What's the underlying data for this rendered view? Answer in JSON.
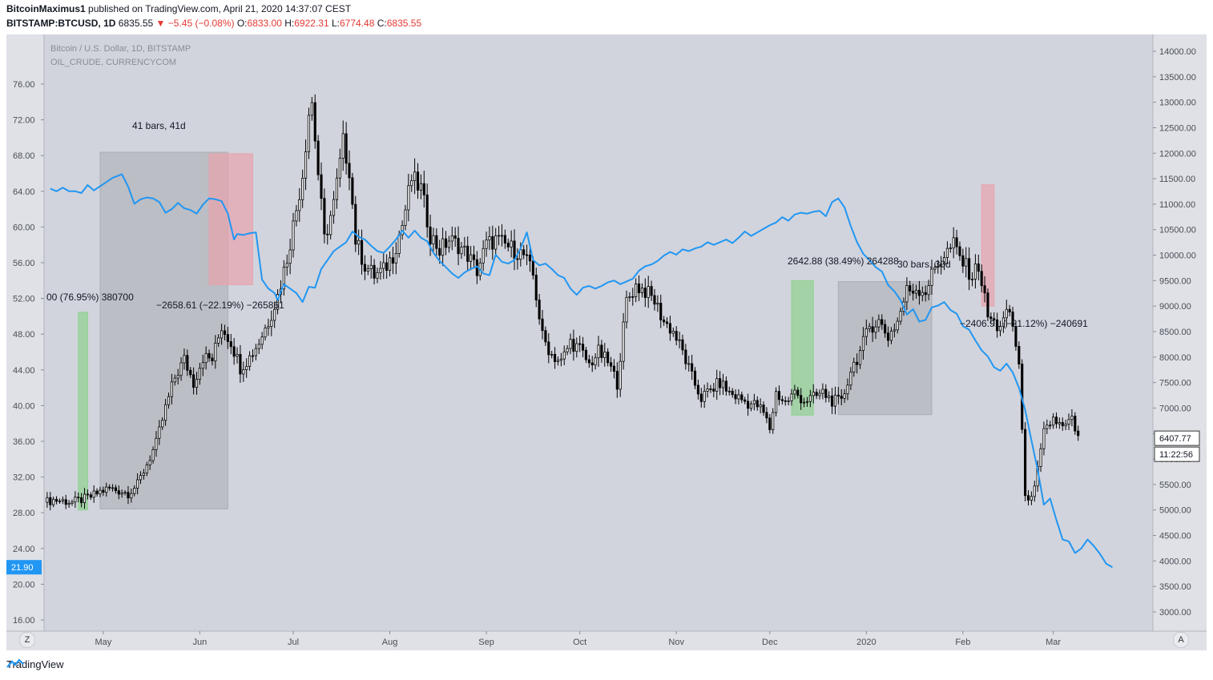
{
  "header": {
    "author": "BitcoinMaximus1",
    "published": "published on TradingView.com, April 21, 2020 14:37:07 CEST",
    "symbol": "BITSTAMP:BTCUSD, 1D",
    "last": "6835.55",
    "change": "−5.45 (−0.08%)",
    "o_label": "O:",
    "o": "6833.00",
    "h_label": "H:",
    "h": "6922.31",
    "l_label": "L:",
    "l": "6774.48",
    "c_label": "C:",
    "c": "6835.55"
  },
  "legend": {
    "main": "Bitcoin / U.S. Dollar, 1D, BITSTAMP",
    "overlay": "OIL_CRUDE, CURRENCYCOM"
  },
  "footer": {
    "brand": "TradingView"
  },
  "corner_left": "Z",
  "corner_right": "A",
  "colors": {
    "bg": "#d1d4dc",
    "frame": "#dfe1e7",
    "oil": "#2196f3",
    "candle": "#000000",
    "green_box": "#8ed18e",
    "red_box": "#e8a3ae",
    "grey_box": "#a9abb0"
  },
  "chart_data": {
    "type": "line",
    "right_axis": {
      "min": 3000,
      "max": 14000,
      "ticks": [
        "14000.00",
        "13500.00",
        "13000.00",
        "12500.00",
        "12000.00",
        "11500.00",
        "11000.00",
        "10500.00",
        "10000.00",
        "9500.00",
        "9000.00",
        "8500.00",
        "8000.00",
        "7500.00",
        "7000.00",
        "6500.00",
        "6000.00",
        "5500.00",
        "5000.00",
        "4500.00",
        "4000.00",
        "3500.00",
        "3000.00"
      ]
    },
    "left_axis": {
      "min": 16,
      "max": 76,
      "ticks": [
        "76.00",
        "72.00",
        "68.00",
        "64.00",
        "60.00",
        "56.00",
        "52.00",
        "48.00",
        "44.00",
        "40.00",
        "36.00",
        "32.00",
        "28.00",
        "24.00",
        "20.00",
        "16.00"
      ]
    },
    "x_ticks": [
      "May",
      "Jun",
      "Jul",
      "Aug",
      "Sep",
      "Oct",
      "Nov",
      "Dec",
      "2020",
      "Feb",
      "Mar"
    ],
    "x_tick_days": [
      19,
      50,
      80,
      111,
      142,
      172,
      203,
      233,
      264,
      295,
      324
    ],
    "days_total": 356,
    "last_price_label": "6407.77",
    "countdown": "11:22:56",
    "last_price": 6407.77,
    "oil_last_label": "21.90",
    "oil_last": 21.9,
    "series": [
      {
        "name": "OIL_CRUDE, CURRENCYCOM",
        "points": [
          [
            2,
            64.3
          ],
          [
            4,
            64
          ],
          [
            6,
            64.4
          ],
          [
            8,
            64
          ],
          [
            10,
            64
          ],
          [
            12,
            63.8
          ],
          [
            14,
            64.7
          ],
          [
            16,
            64.1
          ],
          [
            19,
            64.8
          ],
          [
            22,
            65.5
          ],
          [
            25,
            65.9
          ],
          [
            27,
            64.5
          ],
          [
            29,
            62.6
          ],
          [
            31,
            63.1
          ],
          [
            33,
            63.3
          ],
          [
            35,
            63.2
          ],
          [
            37,
            62.8
          ],
          [
            39,
            61.6
          ],
          [
            41,
            62.0
          ],
          [
            43,
            62.7
          ],
          [
            45,
            62.1
          ],
          [
            47,
            61.9
          ],
          [
            49,
            61.5
          ],
          [
            51,
            62.5
          ],
          [
            53,
            63.2
          ],
          [
            55,
            63.1
          ],
          [
            57,
            62.9
          ],
          [
            59,
            61.5
          ],
          [
            61,
            58.6
          ],
          [
            62,
            59.2
          ],
          [
            64,
            59.1
          ],
          [
            66,
            59.3
          ],
          [
            68,
            59.4
          ],
          [
            70,
            54.1
          ],
          [
            72,
            53.1
          ],
          [
            74,
            52.6
          ],
          [
            75,
            51.8
          ],
          [
            77,
            53.6
          ],
          [
            79,
            53.1
          ],
          [
            81,
            52.6
          ],
          [
            83,
            51.6
          ],
          [
            85,
            53.3
          ],
          [
            87,
            53.2
          ],
          [
            89,
            55.3
          ],
          [
            91,
            56.3
          ],
          [
            93,
            57.3
          ],
          [
            95,
            57.8
          ],
          [
            97,
            58.3
          ],
          [
            99,
            59.5
          ],
          [
            101,
            58.9
          ],
          [
            103,
            58.6
          ],
          [
            105,
            57.9
          ],
          [
            107,
            57.3
          ],
          [
            109,
            57.1
          ],
          [
            111,
            57.8
          ],
          [
            113,
            58.6
          ],
          [
            115,
            59.6
          ],
          [
            117,
            58.8
          ],
          [
            119,
            59.6
          ],
          [
            121,
            58.8
          ],
          [
            123,
            58.4
          ],
          [
            125,
            57.1
          ],
          [
            127,
            56.2
          ],
          [
            129,
            55.5
          ],
          [
            131,
            54.8
          ],
          [
            133,
            54.3
          ],
          [
            135,
            54.9
          ],
          [
            137,
            55.3
          ],
          [
            139,
            55.6
          ],
          [
            141,
            54.8
          ],
          [
            143,
            54.6
          ],
          [
            145,
            56.9
          ],
          [
            147,
            56.1
          ],
          [
            149,
            55.9
          ],
          [
            151,
            56.3
          ],
          [
            153,
            57.6
          ],
          [
            155,
            59.4
          ],
          [
            157,
            56.3
          ],
          [
            159,
            55.7
          ],
          [
            161,
            55.9
          ],
          [
            163,
            55.3
          ],
          [
            165,
            54.6
          ],
          [
            167,
            54.3
          ],
          [
            169,
            53.1
          ],
          [
            171,
            52.4
          ],
          [
            173,
            53.2
          ],
          [
            175,
            53.4
          ],
          [
            177,
            53.1
          ],
          [
            179,
            53.4
          ],
          [
            181,
            53.8
          ],
          [
            183,
            54.0
          ],
          [
            185,
            53.6
          ],
          [
            187,
            53.9
          ],
          [
            189,
            54.2
          ],
          [
            191,
            55.1
          ],
          [
            193,
            55.6
          ],
          [
            195,
            55.8
          ],
          [
            197,
            56.2
          ],
          [
            199,
            56.8
          ],
          [
            201,
            57.2
          ],
          [
            203,
            56.9
          ],
          [
            205,
            57.5
          ],
          [
            207,
            57.3
          ],
          [
            209,
            57.6
          ],
          [
            211,
            57.8
          ],
          [
            213,
            58.3
          ],
          [
            215,
            58.0
          ],
          [
            217,
            58.3
          ],
          [
            219,
            58.6
          ],
          [
            221,
            58.2
          ],
          [
            223,
            58.8
          ],
          [
            225,
            59.5
          ],
          [
            227,
            59.0
          ],
          [
            229,
            59.4
          ],
          [
            231,
            59.8
          ],
          [
            233,
            60.2
          ],
          [
            235,
            60.5
          ],
          [
            237,
            61.1
          ],
          [
            239,
            60.7
          ],
          [
            241,
            61.4
          ],
          [
            243,
            61.6
          ],
          [
            245,
            61.5
          ],
          [
            247,
            61.7
          ],
          [
            249,
            61.8
          ],
          [
            251,
            61.2
          ],
          [
            253,
            62.8
          ],
          [
            255,
            63.2
          ],
          [
            257,
            62.2
          ],
          [
            259,
            60.1
          ],
          [
            261,
            58.3
          ],
          [
            263,
            57.0
          ],
          [
            265,
            56.3
          ],
          [
            267,
            55.5
          ],
          [
            269,
            55.0
          ],
          [
            271,
            53.5
          ],
          [
            273,
            52.8
          ],
          [
            275,
            51.8
          ],
          [
            277,
            50.2
          ],
          [
            279,
            50.8
          ],
          [
            281,
            49.4
          ],
          [
            283,
            49.6
          ],
          [
            285,
            51.0
          ],
          [
            287,
            51.2
          ],
          [
            289,
            51.6
          ],
          [
            291,
            50.7
          ],
          [
            293,
            50.3
          ],
          [
            295,
            48.9
          ],
          [
            297,
            48.5
          ],
          [
            299,
            47.3
          ],
          [
            301,
            46.2
          ],
          [
            303,
            45.5
          ],
          [
            305,
            44.3
          ],
          [
            307,
            43.9
          ],
          [
            309,
            44.7
          ],
          [
            311,
            43.7
          ],
          [
            313,
            42.0
          ],
          [
            315,
            39.5
          ],
          [
            317,
            36.1
          ],
          [
            319,
            32.8
          ],
          [
            321,
            28.9
          ],
          [
            323,
            29.6
          ],
          [
            325,
            27.2
          ],
          [
            327,
            25.0
          ],
          [
            329,
            24.8
          ],
          [
            331,
            23.5
          ],
          [
            333,
            24.0
          ],
          [
            335,
            25.0
          ],
          [
            337,
            24.3
          ],
          [
            339,
            23.4
          ],
          [
            341,
            22.3
          ],
          [
            343,
            21.9
          ]
        ]
      },
      {
        "name": "Bitcoin / U.S. Dollar, 1D, BITSTAMP",
        "points": [
          [
            0,
            5150
          ],
          [
            3,
            5200
          ],
          [
            6,
            5180
          ],
          [
            9,
            5150
          ],
          [
            12,
            5200
          ],
          [
            15,
            5260
          ],
          [
            18,
            5360
          ],
          [
            21,
            5420
          ],
          [
            24,
            5380
          ],
          [
            27,
            5330
          ],
          [
            30,
            5500
          ],
          [
            33,
            5900
          ],
          [
            36,
            6300
          ],
          [
            39,
            7000
          ],
          [
            42,
            7600
          ],
          [
            45,
            7950
          ],
          [
            48,
            7500
          ],
          [
            51,
            8000
          ],
          [
            54,
            7950
          ],
          [
            57,
            8600
          ],
          [
            60,
            8300
          ],
          [
            63,
            7800
          ],
          [
            66,
            8000
          ],
          [
            69,
            8300
          ],
          [
            72,
            8700
          ],
          [
            75,
            9200
          ],
          [
            78,
            9950
          ],
          [
            81,
            10900
          ],
          [
            83,
            11600
          ],
          [
            85,
            12800
          ],
          [
            86,
            13000
          ],
          [
            88,
            11600
          ],
          [
            90,
            10300
          ],
          [
            93,
            11000
          ],
          [
            96,
            12200
          ],
          [
            98,
            11700
          ],
          [
            100,
            10300
          ],
          [
            103,
            9800
          ],
          [
            106,
            9600
          ],
          [
            109,
            9700
          ],
          [
            112,
            10000
          ],
          [
            115,
            10600
          ],
          [
            118,
            11500
          ],
          [
            121,
            11300
          ],
          [
            124,
            10400
          ],
          [
            127,
            10100
          ],
          [
            130,
            10300
          ],
          [
            133,
            10200
          ],
          [
            136,
            10000
          ],
          [
            139,
            9700
          ],
          [
            142,
            10200
          ],
          [
            145,
            10300
          ],
          [
            148,
            10200
          ],
          [
            151,
            10100
          ],
          [
            154,
            10000
          ],
          [
            157,
            9600
          ],
          [
            160,
            8400
          ],
          [
            163,
            8050
          ],
          [
            166,
            7900
          ],
          [
            169,
            8300
          ],
          [
            172,
            8150
          ],
          [
            175,
            7850
          ],
          [
            178,
            8100
          ],
          [
            181,
            7900
          ],
          [
            184,
            7500
          ],
          [
            187,
            9100
          ],
          [
            190,
            9400
          ],
          [
            193,
            9300
          ],
          [
            196,
            9100
          ],
          [
            199,
            8700
          ],
          [
            202,
            8500
          ],
          [
            205,
            8100
          ],
          [
            208,
            7600
          ],
          [
            211,
            7200
          ],
          [
            214,
            7350
          ],
          [
            217,
            7500
          ],
          [
            220,
            7300
          ],
          [
            223,
            7200
          ],
          [
            226,
            7100
          ],
          [
            229,
            7050
          ],
          [
            231,
            6900
          ],
          [
            233,
            6600
          ],
          [
            235,
            7300
          ],
          [
            238,
            7100
          ],
          [
            241,
            7300
          ],
          [
            244,
            7150
          ],
          [
            247,
            7200
          ],
          [
            250,
            7300
          ],
          [
            253,
            7150
          ],
          [
            256,
            7100
          ],
          [
            259,
            7750
          ],
          [
            262,
            8100
          ],
          [
            265,
            8600
          ],
          [
            268,
            8700
          ],
          [
            271,
            8400
          ],
          [
            274,
            8700
          ],
          [
            277,
            9300
          ],
          [
            280,
            9350
          ],
          [
            283,
            9300
          ],
          [
            286,
            9750
          ],
          [
            289,
            10000
          ],
          [
            292,
            10200
          ],
          [
            295,
            9850
          ],
          [
            298,
            9600
          ],
          [
            300,
            9800
          ],
          [
            303,
            8800
          ],
          [
            306,
            8600
          ],
          [
            308,
            8700
          ],
          [
            310,
            8900
          ],
          [
            313,
            7900
          ],
          [
            315,
            5200
          ],
          [
            318,
            5400
          ],
          [
            321,
            6500
          ],
          [
            324,
            6800
          ],
          [
            327,
            6600
          ],
          [
            330,
            6750
          ],
          [
            332,
            6400
          ]
        ]
      }
    ],
    "annotations": [
      {
        "text": "41 bars, 41d"
      },
      {
        "text": "00 (76.95%) 380700"
      },
      {
        "text": "−2658.61 (−22.19%) −265861"
      },
      {
        "text": "2642.88 (38.49%) 264288"
      },
      {
        "text": "30 bars, 30d"
      },
      {
        "text": "−2406.91 (−21.12%) −240691"
      }
    ]
  }
}
